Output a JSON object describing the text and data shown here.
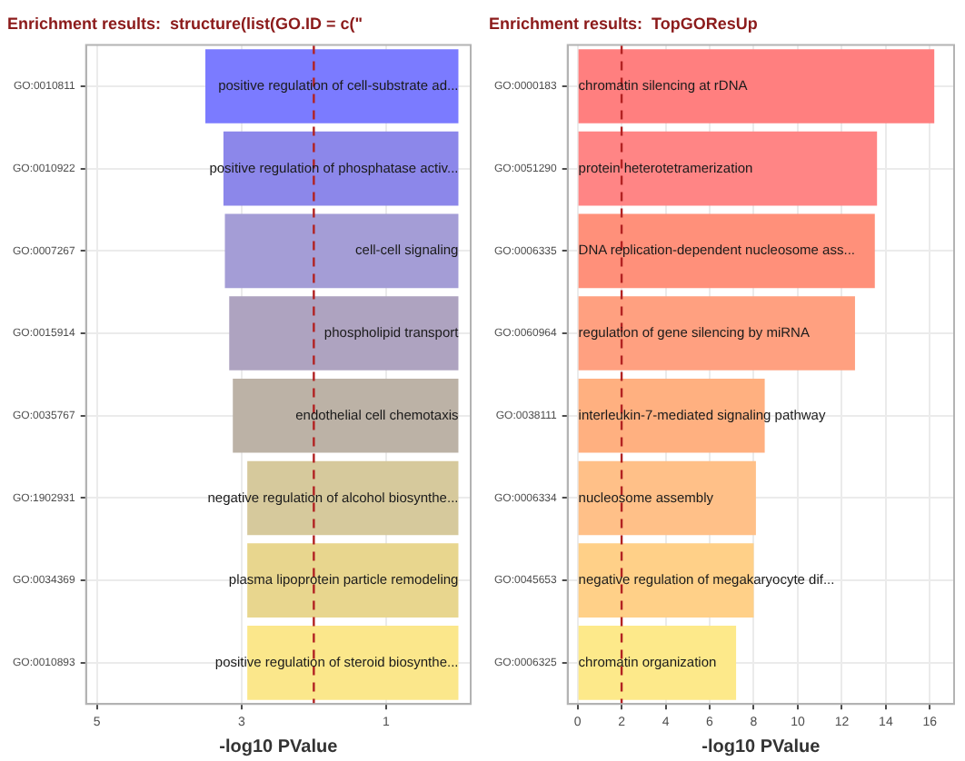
{
  "chart_data": [
    {
      "type": "bar",
      "orientation": "horizontal",
      "title": "Enrichment results:  structure(list(GO.ID = c(\"",
      "xlabel": "-log10 PValue",
      "categories": [
        "GO:0010811",
        "GO:0010922",
        "GO:0007267",
        "GO:0015914",
        "GO:0035767",
        "GO:1902931",
        "GO:0034369",
        "GO:0010893"
      ],
      "values": [
        3.5,
        3.25,
        3.23,
        3.17,
        3.12,
        2.92,
        2.92,
        2.92
      ],
      "colors": [
        "#7b7bff",
        "#8c87ea",
        "#a49dd6",
        "#aea3c0",
        "#bcb2a6",
        "#d6c99c",
        "#e8d68e",
        "#fbe78b"
      ],
      "xlim": [
        5.15,
        -0.17
      ],
      "xticks": [
        5,
        3,
        1
      ],
      "grid": true,
      "ref_lines": [
        {
          "axis": "x",
          "value": 2,
          "color": "#b22222",
          "line_style": "dashed"
        }
      ],
      "annotations": [
        {
          "text": "positive regulation of cell-substrate ad...",
          "y": "GO:0010811"
        },
        {
          "text": "positive regulation of phosphatase activ...",
          "y": "GO:0010922"
        },
        {
          "text": "cell-cell signaling",
          "y": "GO:0007267"
        },
        {
          "text": "phospholipid transport",
          "y": "GO:0015914"
        },
        {
          "text": "endothelial cell chemotaxis",
          "y": "GO:0035767"
        },
        {
          "text": "negative regulation of alcohol biosynthe...",
          "y": "GO:1902931"
        },
        {
          "text": "plasma lipoprotein particle remodeling",
          "y": "GO:0034369"
        },
        {
          "text": "positive regulation of steroid biosynthe...",
          "y": "GO:0010893"
        }
      ]
    },
    {
      "type": "bar",
      "orientation": "horizontal",
      "title": "Enrichment results:  TopGOResUp",
      "xlabel": "-log10 PValue",
      "categories": [
        "GO:0000183",
        "GO:0051290",
        "GO:0006335",
        "GO:0060964",
        "GO:0038111",
        "GO:0006334",
        "GO:0045653",
        "GO:0006325"
      ],
      "values": [
        16.2,
        13.6,
        13.5,
        12.6,
        8.5,
        8.1,
        8.0,
        7.2
      ],
      "colors": [
        "#ff7f7f",
        "#ff8585",
        "#ff907a",
        "#ffa080",
        "#ffb080",
        "#ffc088",
        "#ffd088",
        "#fde98a"
      ],
      "xlim": [
        -0.45,
        17.1
      ],
      "xticks": [
        0,
        2,
        4,
        6,
        8,
        10,
        12,
        14,
        16
      ],
      "grid": true,
      "ref_lines": [
        {
          "axis": "x",
          "value": 2,
          "color": "#b22222",
          "line_style": "dashed"
        }
      ],
      "annotations": [
        {
          "text": "chromatin silencing at rDNA",
          "y": "GO:0000183"
        },
        {
          "text": "protein heterotetramerization",
          "y": "GO:0051290"
        },
        {
          "text": "DNA replication-dependent nucleosome ass...",
          "y": "GO:0006335"
        },
        {
          "text": "regulation of gene silencing by miRNA",
          "y": "GO:0060964"
        },
        {
          "text": "interleukin-7-mediated signaling pathway",
          "y": "GO:0038111"
        },
        {
          "text": "nucleosome assembly",
          "y": "GO:0006334"
        },
        {
          "text": "negative regulation of megakaryocyte dif...",
          "y": "GO:0045653"
        },
        {
          "text": "chromatin organization",
          "y": "GO:0006325"
        }
      ]
    }
  ]
}
